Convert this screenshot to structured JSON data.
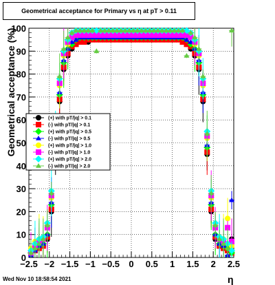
{
  "title": "Geometrical acceptance for Primary vs   η at pT > 0.11",
  "timestamp": "Wed Nov 10 18:58:54 2021",
  "chart_data": {
    "type": "scatter",
    "title": "Geometrical acceptance for Primary vs   η at pT > 0.11",
    "xlabel": "η",
    "ylabel": "Geometrical acceptance (%)",
    "xlim": [
      -2.5,
      2.5
    ],
    "ylim": [
      0,
      100
    ],
    "xticks": [
      "−2.5",
      "−2",
      "−1.5",
      "−1",
      "−0.5",
      "0",
      "0.5",
      "1",
      "1.5",
      "2",
      "2.5"
    ],
    "yticks": [
      "0",
      "10",
      "20",
      "30",
      "40",
      "50",
      "60",
      "70",
      "80",
      "90",
      "100"
    ],
    "grid": true,
    "legend_position": "middle-left",
    "x": [
      -2.45,
      -2.35,
      -2.25,
      -2.15,
      -2.05,
      -1.95,
      -1.85,
      -1.75,
      -1.65,
      -1.55,
      -1.45,
      -1.35,
      -1.25,
      -1.15,
      -1.05,
      -0.95,
      -0.85,
      -0.75,
      -0.65,
      -0.55,
      -0.45,
      -0.35,
      -0.25,
      -0.15,
      -0.05,
      0.05,
      0.15,
      0.25,
      0.35,
      0.45,
      0.55,
      0.65,
      0.75,
      0.85,
      0.95,
      1.05,
      1.15,
      1.25,
      1.35,
      1.45,
      1.55,
      1.65,
      1.75,
      1.85,
      1.95,
      2.05,
      2.15,
      2.25,
      2.35,
      2.45
    ],
    "series": [
      {
        "name": "(+) with pT/|q| > 0.1",
        "color": "#000000",
        "values": [
          1,
          3,
          4,
          5,
          8,
          20,
          45,
          68,
          82,
          88,
          91,
          93,
          94,
          94,
          94,
          95,
          95,
          95,
          95,
          95,
          95,
          95,
          95,
          95,
          95,
          95,
          95,
          95,
          95,
          95,
          95,
          95,
          95,
          95,
          95,
          95,
          95,
          94,
          93,
          91,
          88,
          82,
          68,
          45,
          20,
          8,
          5,
          4,
          3,
          8
        ]
      },
      {
        "name": "(-) with pT/|q| > 0.1",
        "color": "#ff0000",
        "values": [
          2,
          3,
          4,
          5,
          9,
          21,
          46,
          69,
          83,
          89,
          92,
          93,
          94,
          94,
          95,
          95,
          95,
          95,
          95,
          95,
          95,
          95,
          95,
          95,
          95,
          95,
          95,
          95,
          95,
          95,
          95,
          95,
          95,
          95,
          95,
          95,
          95,
          94,
          93,
          92,
          89,
          83,
          69,
          46,
          21,
          9,
          5,
          4,
          3,
          2
        ]
      },
      {
        "name": "(+) with pT/|q| > 0.5",
        "color": "#00ff00",
        "values": [
          2,
          4,
          5,
          6,
          10,
          23,
          48,
          71,
          85,
          91,
          93,
          95,
          96,
          96,
          96,
          96,
          96,
          96,
          96,
          96,
          96,
          96,
          96,
          96,
          96,
          96,
          96,
          96,
          96,
          96,
          96,
          96,
          96,
          96,
          96,
          96,
          96,
          96,
          95,
          93,
          91,
          85,
          71,
          48,
          23,
          10,
          6,
          5,
          4,
          2
        ]
      },
      {
        "name": "(-) with pT/|q| > 0.5",
        "color": "#0000ff",
        "values": [
          1,
          3,
          5,
          6,
          10,
          24,
          49,
          72,
          86,
          91,
          94,
          95,
          96,
          96,
          96,
          96,
          96,
          96,
          96,
          96,
          96,
          96,
          96,
          96,
          96,
          96,
          96,
          96,
          96,
          96,
          96,
          96,
          96,
          96,
          96,
          96,
          96,
          96,
          95,
          94,
          91,
          86,
          72,
          49,
          24,
          10,
          6,
          5,
          1,
          25
        ]
      },
      {
        "name": "(+) with pT/|q| > 1.0",
        "color": "#ffff00",
        "values": [
          4,
          7,
          8,
          9,
          14,
          26,
          52,
          75,
          88,
          93,
          96,
          97,
          97,
          97,
          97,
          97,
          97,
          97,
          97,
          97,
          97,
          97,
          97,
          97,
          97,
          97,
          97,
          97,
          97,
          97,
          97,
          97,
          97,
          97,
          97,
          97,
          97,
          97,
          97,
          96,
          93,
          88,
          75,
          52,
          26,
          14,
          9,
          8,
          17,
          5
        ]
      },
      {
        "name": "(-) with pT/|q| > 1.0",
        "color": "#ff00ff",
        "values": [
          2,
          5,
          7,
          8,
          13,
          27,
          53,
          76,
          89,
          94,
          96,
          97,
          97,
          97,
          97,
          97,
          97,
          97,
          97,
          97,
          97,
          97,
          97,
          97,
          97,
          97,
          97,
          97,
          97,
          97,
          97,
          97,
          97,
          97,
          97,
          97,
          97,
          97,
          97,
          96,
          94,
          89,
          76,
          53,
          27,
          13,
          8,
          7,
          13,
          7
        ]
      },
      {
        "name": "(+) with pT/|q| > 2.0",
        "color": "#00ffff",
        "values": [
          3,
          6,
          8,
          9,
          15,
          29,
          55,
          78,
          90,
          95,
          98,
          99,
          99,
          99,
          99,
          99,
          99,
          99,
          99,
          99,
          99,
          99,
          99,
          99,
          99,
          99,
          99,
          99,
          99,
          99,
          99,
          99,
          99,
          99,
          99,
          99,
          99,
          99,
          99,
          98,
          95,
          90,
          78,
          55,
          29,
          15,
          9,
          8,
          6,
          3
        ]
      },
      {
        "name": "(-) with pT/|q| > 2.0",
        "color": "#66cc44",
        "values": [
          2,
          4,
          6,
          8,
          14,
          28,
          54,
          79,
          91,
          96,
          98,
          99,
          99,
          99,
          99,
          99,
          90,
          99,
          99,
          99,
          99,
          99,
          99,
          99,
          99,
          99,
          99,
          99,
          99,
          99,
          99,
          99,
          99,
          99,
          99,
          99,
          99,
          99,
          88,
          98,
          96,
          91,
          79,
          54,
          28,
          14,
          8,
          6,
          4,
          99
        ]
      }
    ]
  }
}
